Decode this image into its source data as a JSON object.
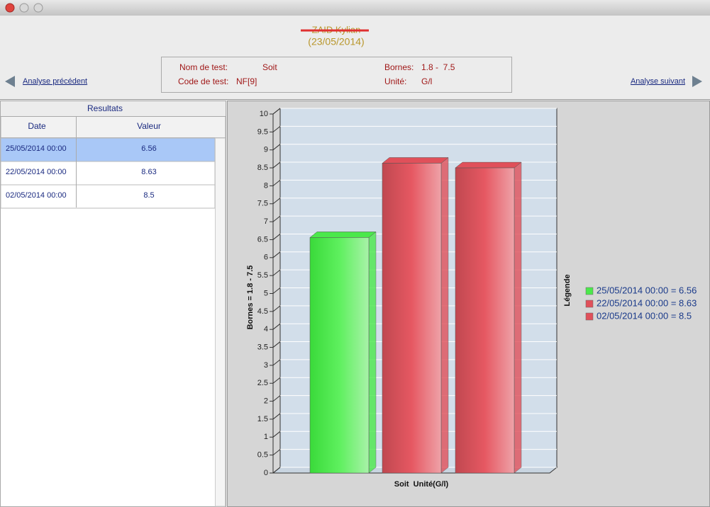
{
  "header": {
    "patient": "ZAID Kylian",
    "date": "(23/05/2014)"
  },
  "info": {
    "nom_label": "Nom de test:",
    "nom": "Soit",
    "code_label": "Code de test:",
    "code": "NF[9]",
    "bornes_label": "Bornes:",
    "bornes": "1.8 -  7.5",
    "unite_label": "Unité:",
    "unite": "G/l"
  },
  "nav": {
    "prev": "Analyse précédent",
    "next": "Analyse suivant"
  },
  "table": {
    "title": "Resultats",
    "columns": [
      "Date",
      "Valeur"
    ],
    "rows": [
      [
        "25/05/2014 00:00",
        "6.56"
      ],
      [
        "22/05/2014 00:00",
        "8.63"
      ],
      [
        "02/05/2014 00:00",
        "8.5"
      ]
    ]
  },
  "chart_data": {
    "type": "bar",
    "ylabel": "Bornes = 1.8 - 7.5",
    "xlabel": "Soit  Unité(G/l)",
    "legend_title": "Légende",
    "legend_labels": [
      "25/05/2014 00:00 = 6.56",
      "22/05/2014 00:00 = 8.63",
      "02/05/2014 00:00 = 8.5"
    ],
    "values": [
      6.56,
      8.63,
      8.5
    ],
    "colors": [
      "#4be84b",
      "#e0505a",
      "#e0505a"
    ],
    "ylim": [
      0,
      10
    ],
    "yticks": [
      0,
      0.5,
      1,
      1.5,
      2,
      2.5,
      3,
      3.5,
      4,
      4.5,
      5,
      5.5,
      6,
      6.5,
      7,
      7.5,
      8,
      8.5,
      9,
      9.5,
      10
    ],
    "grid": true
  }
}
